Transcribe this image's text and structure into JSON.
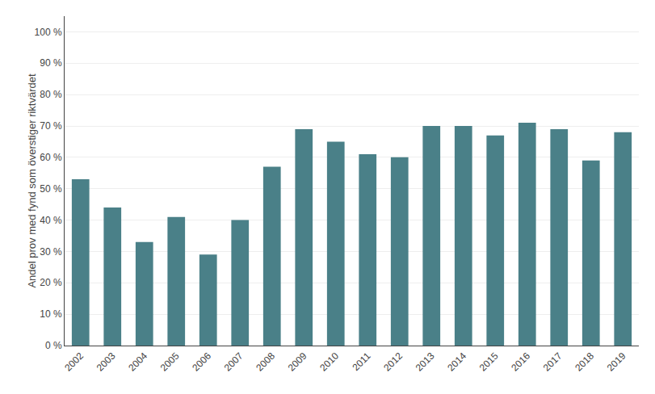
{
  "chart_data": {
    "type": "bar",
    "ylabel": "Andel prov med fynd som överstiger riktvärdet",
    "categories": [
      "2002",
      "2003",
      "2004",
      "2005",
      "2006",
      "2007",
      "2008",
      "2009",
      "2010",
      "2011",
      "2012",
      "2013",
      "2014",
      "2015",
      "2016",
      "2017",
      "2018",
      "2019"
    ],
    "values": [
      53,
      44,
      33,
      41,
      29,
      40,
      57,
      69,
      65,
      61,
      60,
      70,
      70,
      67,
      71,
      69,
      59,
      68
    ],
    "color": "#4a8088",
    "ylim": [
      0,
      105
    ],
    "yticks": [
      {
        "value": 0,
        "label": "0 %"
      },
      {
        "value": 10,
        "label": "10 %"
      },
      {
        "value": 20,
        "label": "20 %"
      },
      {
        "value": 30,
        "label": "30 %"
      },
      {
        "value": 40,
        "label": "40 %"
      },
      {
        "value": 50,
        "label": "50 %"
      },
      {
        "value": 60,
        "label": "60 %"
      },
      {
        "value": 70,
        "label": "70 %"
      },
      {
        "value": 80,
        "label": "80 %"
      },
      {
        "value": 90,
        "label": "90 %"
      },
      {
        "value": 100,
        "label": "100 %"
      }
    ],
    "grid": true
  }
}
